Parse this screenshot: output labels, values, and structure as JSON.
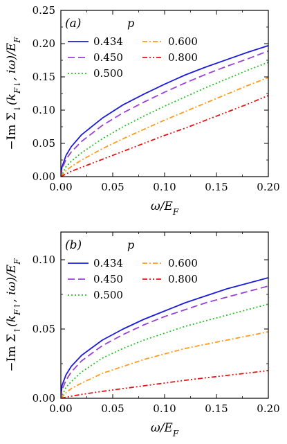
{
  "chart_data": [
    {
      "type": "line",
      "panel_label": "(a)",
      "legend_title": "p",
      "legend_placement": "top-left",
      "ylabel": "−Im Σ↓(kF↓, iω)/EF",
      "xlabel": "ω/EF",
      "xlim": [
        0,
        0.2
      ],
      "ylim": [
        0,
        0.25
      ],
      "xticks": [
        "0.00",
        "0.05",
        "0.10",
        "0.15",
        "0.20"
      ],
      "yticks": [
        "0.00",
        "0.05",
        "0.10",
        "0.15",
        "0.20",
        "0.25"
      ],
      "grid": false,
      "series": [
        {
          "name": "0.434",
          "color": "#1a1adb",
          "dash": "solid",
          "x": [
            0,
            0.001,
            0.005,
            0.01,
            0.02,
            0.04,
            0.06,
            0.08,
            0.1,
            0.12,
            0.14,
            0.16,
            0.18,
            0.2
          ],
          "values": [
            0,
            0.014,
            0.032,
            0.045,
            0.063,
            0.088,
            0.108,
            0.124,
            0.139,
            0.153,
            0.165,
            0.176,
            0.187,
            0.197
          ]
        },
        {
          "name": "0.450",
          "color": "#9b3fd6",
          "dash": "long-dash",
          "x": [
            0,
            0.001,
            0.005,
            0.01,
            0.02,
            0.04,
            0.06,
            0.08,
            0.1,
            0.12,
            0.14,
            0.16,
            0.18,
            0.2
          ],
          "values": [
            0,
            0.011,
            0.026,
            0.037,
            0.053,
            0.077,
            0.096,
            0.112,
            0.127,
            0.141,
            0.154,
            0.166,
            0.177,
            0.189
          ]
        },
        {
          "name": "0.500",
          "color": "#22c322",
          "dash": "dotted",
          "x": [
            0,
            0.005,
            0.01,
            0.02,
            0.04,
            0.06,
            0.08,
            0.1,
            0.12,
            0.14,
            0.16,
            0.18,
            0.2
          ],
          "values": [
            0,
            0.015,
            0.023,
            0.036,
            0.057,
            0.075,
            0.091,
            0.106,
            0.12,
            0.134,
            0.147,
            0.16,
            0.172
          ]
        },
        {
          "name": "0.600",
          "color": "#ff9a1a",
          "dash": "dash-dot",
          "x": [
            0,
            0.005,
            0.01,
            0.02,
            0.04,
            0.06,
            0.08,
            0.1,
            0.12,
            0.14,
            0.16,
            0.18,
            0.2
          ],
          "values": [
            0,
            0.009,
            0.015,
            0.025,
            0.042,
            0.057,
            0.071,
            0.085,
            0.098,
            0.111,
            0.124,
            0.137,
            0.149
          ]
        },
        {
          "name": "0.800",
          "color": "#e81010",
          "dash": "dash-dot-dot",
          "x": [
            0,
            0.005,
            0.01,
            0.02,
            0.04,
            0.06,
            0.08,
            0.1,
            0.12,
            0.14,
            0.16,
            0.18,
            0.2
          ],
          "values": [
            0,
            0.004,
            0.008,
            0.014,
            0.026,
            0.038,
            0.05,
            0.062,
            0.073,
            0.085,
            0.097,
            0.109,
            0.122
          ]
        }
      ]
    },
    {
      "type": "line",
      "panel_label": "(b)",
      "legend_title": "p",
      "legend_placement": "top-left",
      "ylabel": "−Im Σ↑(kF↑, iω)/EF",
      "xlabel": "ω/EF",
      "xlim": [
        0,
        0.2
      ],
      "ylim": [
        0,
        0.12
      ],
      "xticks": [
        "0.00",
        "0.05",
        "0.10",
        "0.15",
        "0.20"
      ],
      "yticks": [
        "0.00",
        "0.05",
        "0.10"
      ],
      "grid": false,
      "series": [
        {
          "name": "0.434",
          "color": "#1a1adb",
          "dash": "solid",
          "x": [
            0,
            0.001,
            0.005,
            0.01,
            0.02,
            0.04,
            0.06,
            0.08,
            0.1,
            0.12,
            0.14,
            0.16,
            0.18,
            0.2
          ],
          "values": [
            0,
            0.009,
            0.017,
            0.023,
            0.031,
            0.042,
            0.05,
            0.057,
            0.063,
            0.069,
            0.074,
            0.079,
            0.083,
            0.087
          ]
        },
        {
          "name": "0.450",
          "color": "#9b3fd6",
          "dash": "long-dash",
          "x": [
            0,
            0.001,
            0.005,
            0.01,
            0.02,
            0.04,
            0.06,
            0.08,
            0.1,
            0.12,
            0.14,
            0.16,
            0.18,
            0.2
          ],
          "values": [
            0,
            0.006,
            0.013,
            0.019,
            0.027,
            0.038,
            0.046,
            0.053,
            0.059,
            0.064,
            0.069,
            0.073,
            0.077,
            0.081
          ]
        },
        {
          "name": "0.500",
          "color": "#22c322",
          "dash": "dotted",
          "x": [
            0,
            0.005,
            0.01,
            0.02,
            0.04,
            0.06,
            0.08,
            0.1,
            0.12,
            0.14,
            0.16,
            0.18,
            0.2
          ],
          "values": [
            0,
            0.008,
            0.012,
            0.019,
            0.029,
            0.036,
            0.042,
            0.047,
            0.052,
            0.056,
            0.06,
            0.064,
            0.068
          ]
        },
        {
          "name": "0.600",
          "color": "#ff9a1a",
          "dash": "dash-dot",
          "x": [
            0,
            0.005,
            0.01,
            0.02,
            0.04,
            0.06,
            0.08,
            0.1,
            0.12,
            0.14,
            0.16,
            0.18,
            0.2
          ],
          "values": [
            0,
            0.004,
            0.007,
            0.011,
            0.018,
            0.023,
            0.028,
            0.032,
            0.036,
            0.039,
            0.042,
            0.045,
            0.048
          ]
        },
        {
          "name": "0.800",
          "color": "#e81010",
          "dash": "dash-dot-dot",
          "x": [
            0,
            0.01,
            0.02,
            0.04,
            0.06,
            0.08,
            0.1,
            0.12,
            0.14,
            0.16,
            0.18,
            0.2
          ],
          "values": [
            0,
            0.0015,
            0.0028,
            0.005,
            0.007,
            0.009,
            0.011,
            0.013,
            0.0148,
            0.0165,
            0.0182,
            0.02
          ]
        }
      ]
    }
  ]
}
